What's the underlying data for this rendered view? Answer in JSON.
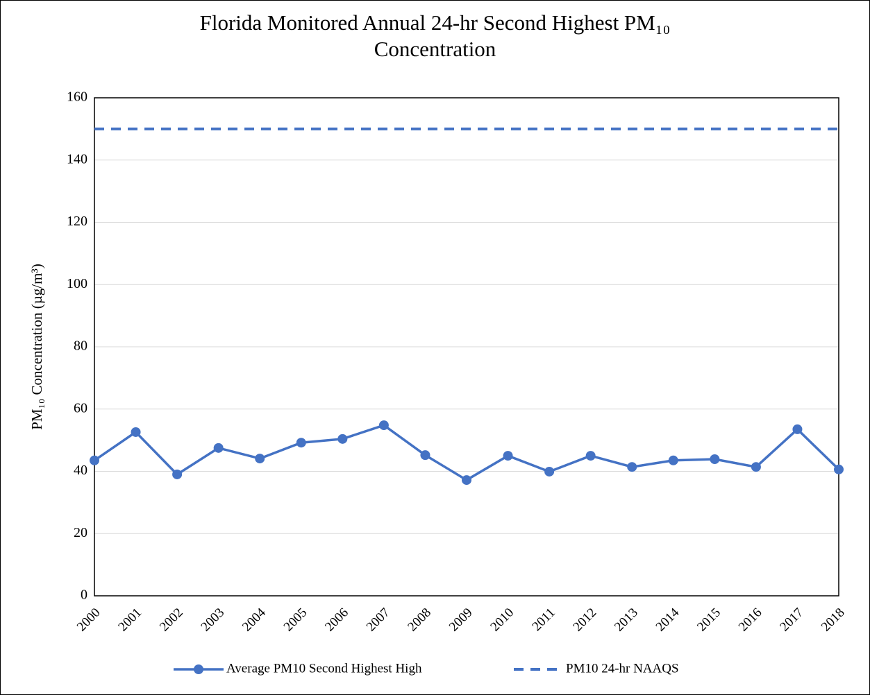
{
  "chart_data": {
    "type": "line",
    "title": "Florida Monitored Annual 24-hr Second Highest PM₁₀ Concentration",
    "y_label": "PM₁₀ Concentration (µg/m³)",
    "categories": [
      "2000",
      "2001",
      "2002",
      "2003",
      "2004",
      "2005",
      "2006",
      "2007",
      "2008",
      "2009",
      "2010",
      "2011",
      "2012",
      "2013",
      "2014",
      "2015",
      "2016",
      "2017",
      "2018"
    ],
    "series": [
      {
        "name": "Average PM10 Second Highest High",
        "color": "#4472c4",
        "markers": true,
        "dashed": false,
        "values": [
          43.5,
          52.6,
          39.0,
          47.5,
          44.1,
          49.2,
          50.4,
          54.8,
          45.2,
          37.2,
          45.0,
          39.9,
          45.0,
          41.4,
          43.5,
          43.9,
          41.4,
          53.5,
          40.6
        ]
      },
      {
        "name": "PM10 24-hr NAAQS",
        "color": "#4472c4",
        "markers": false,
        "dashed": true,
        "values": [
          150,
          150,
          150,
          150,
          150,
          150,
          150,
          150,
          150,
          150,
          150,
          150,
          150,
          150,
          150,
          150,
          150,
          150,
          150
        ]
      }
    ],
    "ylim": [
      0,
      160
    ],
    "yticks": [
      0,
      20,
      40,
      60,
      80,
      100,
      120,
      140,
      160
    ],
    "grid": true,
    "legend": "bottom"
  }
}
